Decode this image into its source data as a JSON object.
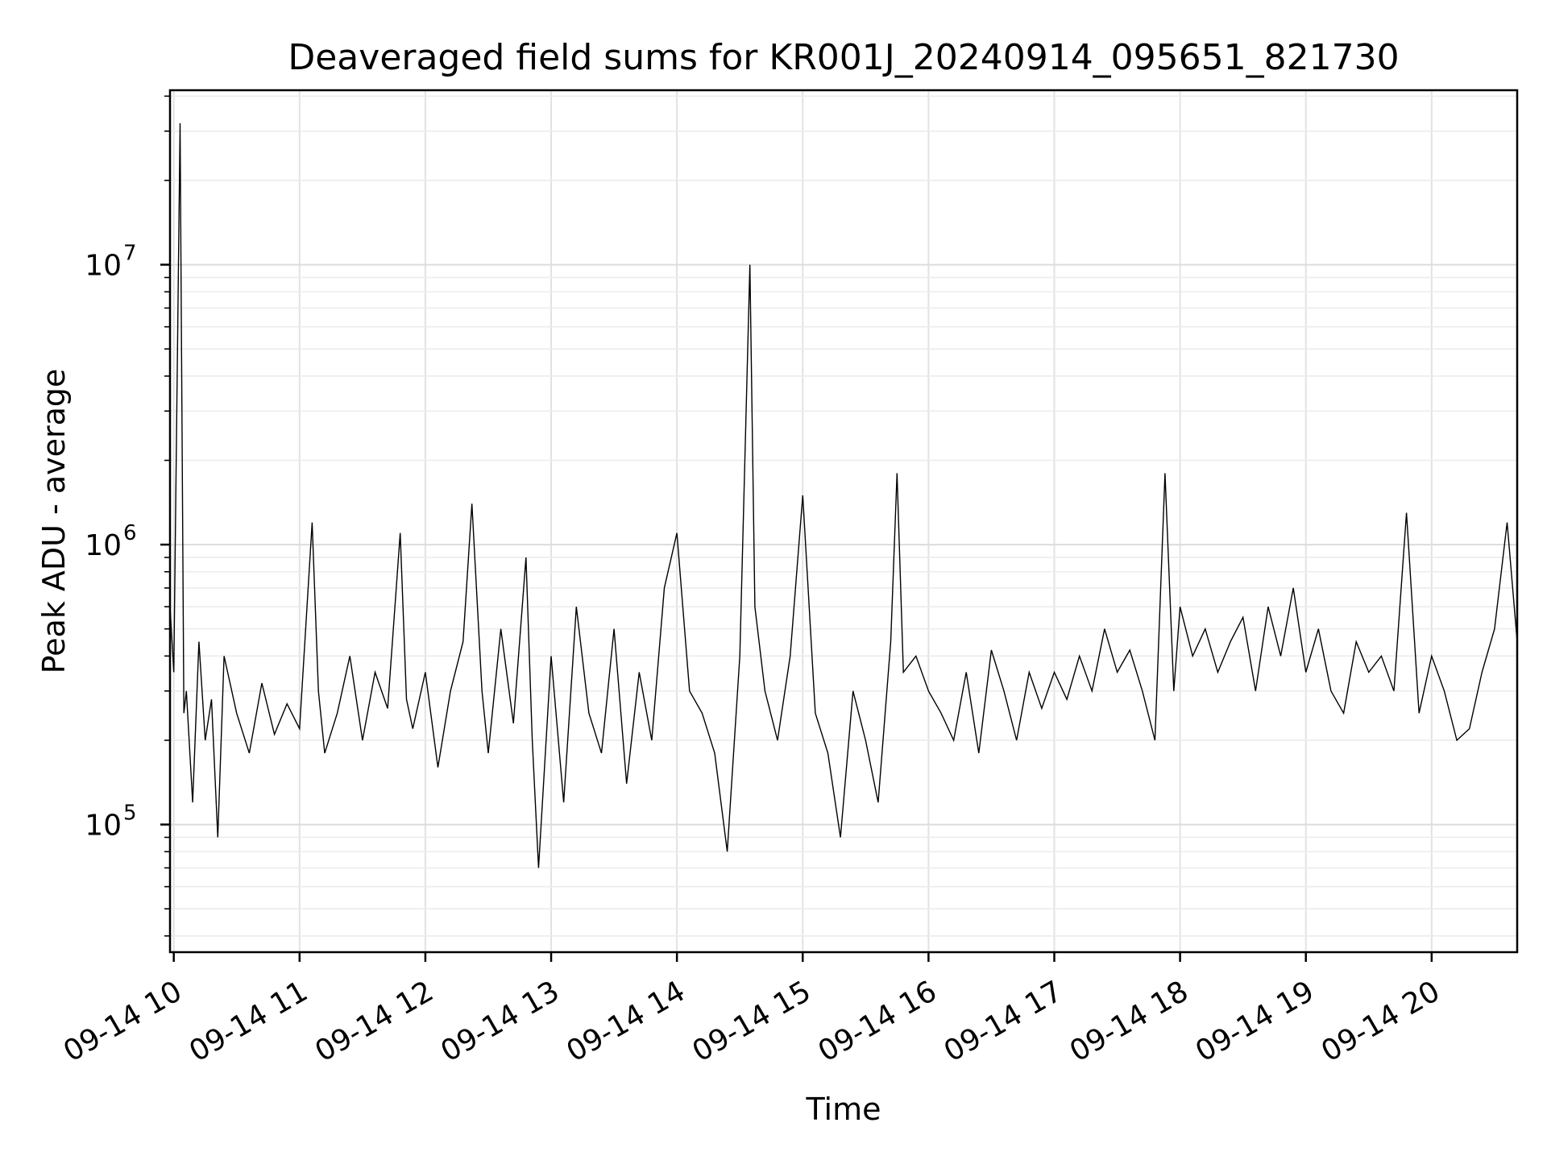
{
  "chart_data": {
    "type": "line",
    "title": "Deaveraged field sums for KR001J_20240914_095651_821730",
    "xlabel": "Time",
    "ylabel": "Peak ADU - average",
    "y_scale": "log",
    "ylim": [
      35000,
      42000000
    ],
    "x_range_hours": [
      9.97,
      20.68
    ],
    "x_ticks": [
      {
        "hour": 10,
        "label": "09-14 10"
      },
      {
        "hour": 11,
        "label": "09-14 11"
      },
      {
        "hour": 12,
        "label": "09-14 12"
      },
      {
        "hour": 13,
        "label": "09-14 13"
      },
      {
        "hour": 14,
        "label": "09-14 14"
      },
      {
        "hour": 15,
        "label": "09-14 15"
      },
      {
        "hour": 16,
        "label": "09-14 16"
      },
      {
        "hour": 17,
        "label": "09-14 17"
      },
      {
        "hour": 18,
        "label": "09-14 18"
      },
      {
        "hour": 19,
        "label": "09-14 19"
      },
      {
        "hour": 20,
        "label": "09-14 20"
      }
    ],
    "y_ticks": [
      {
        "value": 100000,
        "base": "10",
        "exp": "5"
      },
      {
        "value": 1000000,
        "base": "10",
        "exp": "6"
      },
      {
        "value": 10000000,
        "base": "10",
        "exp": "7"
      }
    ],
    "grid": true,
    "line_color": "#000000",
    "series": [
      {
        "x_hours": [
          9.97,
          10.0,
          10.05,
          10.08,
          10.1,
          10.15,
          10.2,
          10.25,
          10.3,
          10.35,
          10.4,
          10.5,
          10.6,
          10.7,
          10.8,
          10.9,
          11.0,
          11.1,
          11.15,
          11.2,
          11.3,
          11.4,
          11.5,
          11.6,
          11.7,
          11.8,
          11.85,
          11.9,
          12.0,
          12.1,
          12.2,
          12.3,
          12.37,
          12.45,
          12.5,
          12.6,
          12.7,
          12.8,
          12.85,
          12.9,
          13.0,
          13.1,
          13.2,
          13.3,
          13.4,
          13.5,
          13.6,
          13.7,
          13.8,
          13.9,
          14.0,
          14.1,
          14.2,
          14.3,
          14.4,
          14.5,
          14.58,
          14.62,
          14.7,
          14.8,
          14.9,
          15.0,
          15.1,
          15.2,
          15.3,
          15.4,
          15.5,
          15.6,
          15.7,
          15.75,
          15.8,
          15.9,
          16.0,
          16.1,
          16.2,
          16.3,
          16.4,
          16.5,
          16.6,
          16.7,
          16.8,
          16.9,
          17.0,
          17.1,
          17.2,
          17.3,
          17.4,
          17.5,
          17.6,
          17.7,
          17.8,
          17.88,
          17.95,
          18.0,
          18.1,
          18.2,
          18.3,
          18.4,
          18.5,
          18.6,
          18.7,
          18.8,
          18.9,
          19.0,
          19.1,
          19.2,
          19.3,
          19.4,
          19.5,
          19.6,
          19.7,
          19.8,
          19.9,
          20.0,
          20.1,
          20.2,
          20.3,
          20.4,
          20.5,
          20.6,
          20.68
        ],
        "y": [
          600000,
          350000,
          32000000,
          250000,
          300000,
          120000,
          450000,
          200000,
          280000,
          90000,
          400000,
          250000,
          180000,
          320000,
          210000,
          270000,
          220000,
          1200000,
          300000,
          180000,
          250000,
          400000,
          200000,
          350000,
          260000,
          1100000,
          280000,
          220000,
          350000,
          160000,
          300000,
          450000,
          1400000,
          300000,
          180000,
          500000,
          230000,
          900000,
          200000,
          70000,
          400000,
          120000,
          600000,
          250000,
          180000,
          500000,
          140000,
          350000,
          200000,
          700000,
          1100000,
          300000,
          250000,
          180000,
          80000,
          400000,
          10000000,
          600000,
          300000,
          200000,
          400000,
          1500000,
          250000,
          180000,
          90000,
          300000,
          200000,
          120000,
          450000,
          1800000,
          350000,
          400000,
          300000,
          250000,
          200000,
          350000,
          180000,
          420000,
          300000,
          200000,
          350000,
          260000,
          350000,
          280000,
          400000,
          300000,
          500000,
          350000,
          420000,
          300000,
          200000,
          1800000,
          300000,
          600000,
          400000,
          500000,
          350000,
          450000,
          550000,
          300000,
          600000,
          400000,
          700000,
          350000,
          500000,
          300000,
          250000,
          450000,
          350000,
          400000,
          300000,
          1300000,
          250000,
          400000,
          300000,
          200000,
          220000,
          350000,
          500000,
          1200000,
          450000
        ]
      }
    ]
  }
}
